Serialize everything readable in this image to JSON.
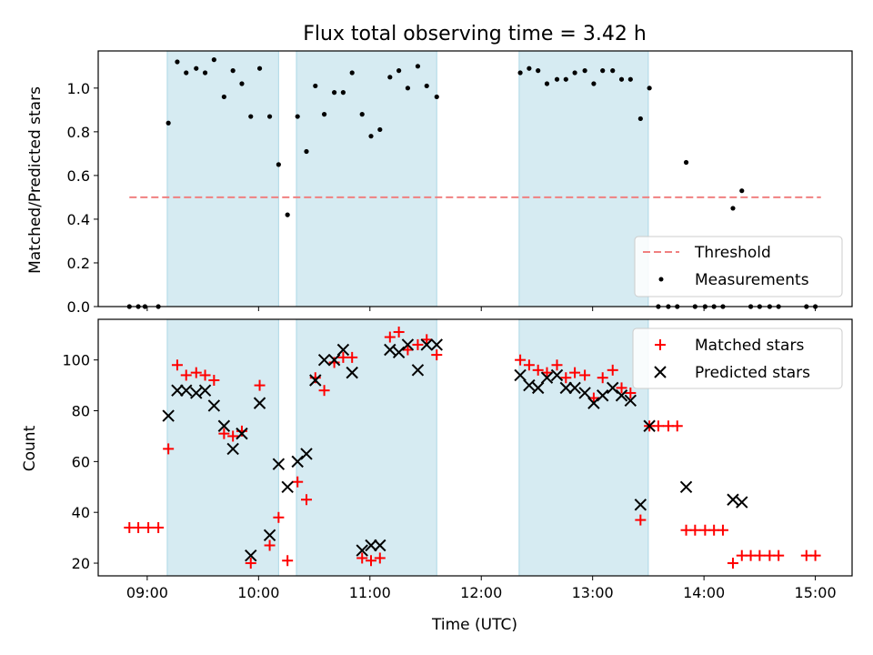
{
  "chart_data": {
    "type": "scatter",
    "title": "Flux total observing time = 3.42 h",
    "xlabel": "Time (UTC)",
    "x_ticks": [
      {
        "value": 9.0,
        "label": "09:00"
      },
      {
        "value": 10.0,
        "label": "10:00"
      },
      {
        "value": 11.0,
        "label": "11:00"
      },
      {
        "value": 12.0,
        "label": "12:00"
      },
      {
        "value": 13.0,
        "label": "13:00"
      },
      {
        "value": 14.0,
        "label": "14:00"
      },
      {
        "value": 15.0,
        "label": "15:00"
      }
    ],
    "xlim": [
      8.56,
      15.33
    ],
    "shaded_intervals": [
      [
        9.18,
        10.18
      ],
      [
        10.34,
        11.6
      ],
      [
        12.34,
        13.5
      ]
    ],
    "shade_color": "#add8e6",
    "top": {
      "ylabel": "Matched/Predicted stars",
      "ylim": [
        0,
        1.17
      ],
      "y_ticks": [
        {
          "value": 0.0,
          "label": "0.0"
        },
        {
          "value": 0.2,
          "label": "0.2"
        },
        {
          "value": 0.4,
          "label": "0.4"
        },
        {
          "value": 0.6,
          "label": "0.6"
        },
        {
          "value": 0.8,
          "label": "0.8"
        },
        {
          "value": 1.0,
          "label": "1.0"
        }
      ],
      "threshold": {
        "name": "Threshold",
        "value": 0.5,
        "x_range": [
          8.84,
          15.05
        ],
        "color": "#f08080"
      },
      "measurements": {
        "name": "Measurements",
        "color": "#000000",
        "points": [
          [
            8.84,
            0
          ],
          [
            8.92,
            0
          ],
          [
            8.98,
            0
          ],
          [
            9.1,
            0
          ],
          [
            9.19,
            0.84
          ],
          [
            9.27,
            1.12
          ],
          [
            9.35,
            1.07
          ],
          [
            9.44,
            1.09
          ],
          [
            9.52,
            1.07
          ],
          [
            9.6,
            1.13
          ],
          [
            9.69,
            0.96
          ],
          [
            9.77,
            1.08
          ],
          [
            9.85,
            1.02
          ],
          [
            9.93,
            0.87
          ],
          [
            10.01,
            1.09
          ],
          [
            10.1,
            0.87
          ],
          [
            10.18,
            0.65
          ],
          [
            10.26,
            0.42
          ],
          [
            10.35,
            0.87
          ],
          [
            10.43,
            0.71
          ],
          [
            10.51,
            1.01
          ],
          [
            10.59,
            0.88
          ],
          [
            10.68,
            0.98
          ],
          [
            10.76,
            0.98
          ],
          [
            10.84,
            1.07
          ],
          [
            10.93,
            0.88
          ],
          [
            11.01,
            0.78
          ],
          [
            11.09,
            0.81
          ],
          [
            11.18,
            1.05
          ],
          [
            11.26,
            1.08
          ],
          [
            11.34,
            1.0
          ],
          [
            11.43,
            1.1
          ],
          [
            11.51,
            1.01
          ],
          [
            11.6,
            0.96
          ],
          [
            12.35,
            1.07
          ],
          [
            12.43,
            1.09
          ],
          [
            12.51,
            1.08
          ],
          [
            12.59,
            1.02
          ],
          [
            12.68,
            1.04
          ],
          [
            12.76,
            1.04
          ],
          [
            12.84,
            1.07
          ],
          [
            12.93,
            1.08
          ],
          [
            13.01,
            1.02
          ],
          [
            13.09,
            1.08
          ],
          [
            13.18,
            1.08
          ],
          [
            13.26,
            1.04
          ],
          [
            13.34,
            1.04
          ],
          [
            13.43,
            0.86
          ],
          [
            13.51,
            1.0
          ],
          [
            13.59,
            0
          ],
          [
            13.68,
            0
          ],
          [
            13.76,
            0
          ],
          [
            13.84,
            0.66
          ],
          [
            13.92,
            0
          ],
          [
            14.01,
            0
          ],
          [
            14.09,
            0
          ],
          [
            14.17,
            0
          ],
          [
            14.26,
            0.45
          ],
          [
            14.34,
            0.53
          ],
          [
            14.42,
            0
          ],
          [
            14.5,
            0
          ],
          [
            14.59,
            0
          ],
          [
            14.67,
            0
          ],
          [
            14.92,
            0
          ],
          [
            15.0,
            0
          ]
        ]
      }
    },
    "bottom": {
      "ylabel": "Count",
      "ylim": [
        15,
        116
      ],
      "y_ticks": [
        {
          "value": 20,
          "label": "20"
        },
        {
          "value": 40,
          "label": "40"
        },
        {
          "value": 60,
          "label": "60"
        },
        {
          "value": 80,
          "label": "80"
        },
        {
          "value": 100,
          "label": "100"
        }
      ],
      "series": [
        {
          "name": "Matched stars",
          "marker": "plus",
          "color": "#ff0000",
          "points": [
            [
              8.84,
              34
            ],
            [
              8.92,
              34
            ],
            [
              9.01,
              34
            ],
            [
              9.1,
              34
            ],
            [
              9.19,
              65
            ],
            [
              9.27,
              98
            ],
            [
              9.35,
              94
            ],
            [
              9.44,
              95
            ],
            [
              9.52,
              94
            ],
            [
              9.6,
              92
            ],
            [
              9.69,
              71
            ],
            [
              9.77,
              70
            ],
            [
              9.85,
              72
            ],
            [
              9.93,
              20
            ],
            [
              10.01,
              90
            ],
            [
              10.1,
              27
            ],
            [
              10.18,
              38
            ],
            [
              10.26,
              21
            ],
            [
              10.35,
              52
            ],
            [
              10.43,
              45
            ],
            [
              10.51,
              93
            ],
            [
              10.59,
              88
            ],
            [
              10.68,
              99
            ],
            [
              10.76,
              101
            ],
            [
              10.84,
              101
            ],
            [
              10.93,
              22
            ],
            [
              11.01,
              21
            ],
            [
              11.09,
              22
            ],
            [
              11.18,
              109
            ],
            [
              11.26,
              111
            ],
            [
              11.34,
              104
            ],
            [
              11.43,
              106
            ],
            [
              11.51,
              108
            ],
            [
              11.6,
              102
            ],
            [
              12.35,
              100
            ],
            [
              12.43,
              98
            ],
            [
              12.51,
              96
            ],
            [
              12.59,
              95
            ],
            [
              12.68,
              98
            ],
            [
              12.76,
              93
            ],
            [
              12.84,
              95
            ],
            [
              12.93,
              94
            ],
            [
              13.01,
              85
            ],
            [
              13.09,
              93
            ],
            [
              13.18,
              96
            ],
            [
              13.26,
              89
            ],
            [
              13.34,
              87
            ],
            [
              13.43,
              37
            ],
            [
              13.51,
              74
            ],
            [
              13.59,
              74
            ],
            [
              13.68,
              74
            ],
            [
              13.76,
              74
            ],
            [
              13.84,
              33
            ],
            [
              13.92,
              33
            ],
            [
              14.01,
              33
            ],
            [
              14.09,
              33
            ],
            [
              14.17,
              33
            ],
            [
              14.26,
              20
            ],
            [
              14.34,
              23
            ],
            [
              14.42,
              23
            ],
            [
              14.5,
              23
            ],
            [
              14.59,
              23
            ],
            [
              14.67,
              23
            ],
            [
              14.92,
              23
            ],
            [
              15.0,
              23
            ]
          ]
        },
        {
          "name": "Predicted stars",
          "marker": "x",
          "color": "#000000",
          "points": [
            [
              9.19,
              78
            ],
            [
              9.27,
              88
            ],
            [
              9.35,
              88
            ],
            [
              9.44,
              87
            ],
            [
              9.52,
              88
            ],
            [
              9.6,
              82
            ],
            [
              9.69,
              74
            ],
            [
              9.77,
              65
            ],
            [
              9.85,
              71
            ],
            [
              9.93,
              23
            ],
            [
              10.01,
              83
            ],
            [
              10.1,
              31
            ],
            [
              10.18,
              59
            ],
            [
              10.26,
              50
            ],
            [
              10.35,
              60
            ],
            [
              10.43,
              63
            ],
            [
              10.51,
              92
            ],
            [
              10.59,
              100
            ],
            [
              10.68,
              100
            ],
            [
              10.76,
              104
            ],
            [
              10.84,
              95
            ],
            [
              10.93,
              25
            ],
            [
              11.01,
              27
            ],
            [
              11.09,
              27
            ],
            [
              11.18,
              104
            ],
            [
              11.26,
              103
            ],
            [
              11.34,
              106
            ],
            [
              11.43,
              96
            ],
            [
              11.51,
              106
            ],
            [
              11.6,
              106
            ],
            [
              12.35,
              94
            ],
            [
              12.43,
              90
            ],
            [
              12.51,
              89
            ],
            [
              12.59,
              93
            ],
            [
              12.68,
              94
            ],
            [
              12.76,
              89
            ],
            [
              12.84,
              89
            ],
            [
              12.93,
              87
            ],
            [
              13.01,
              83
            ],
            [
              13.09,
              86
            ],
            [
              13.18,
              89
            ],
            [
              13.26,
              86
            ],
            [
              13.34,
              84
            ],
            [
              13.43,
              43
            ],
            [
              13.51,
              74
            ],
            [
              13.84,
              50
            ],
            [
              14.26,
              45
            ],
            [
              14.34,
              44
            ]
          ]
        }
      ]
    }
  }
}
